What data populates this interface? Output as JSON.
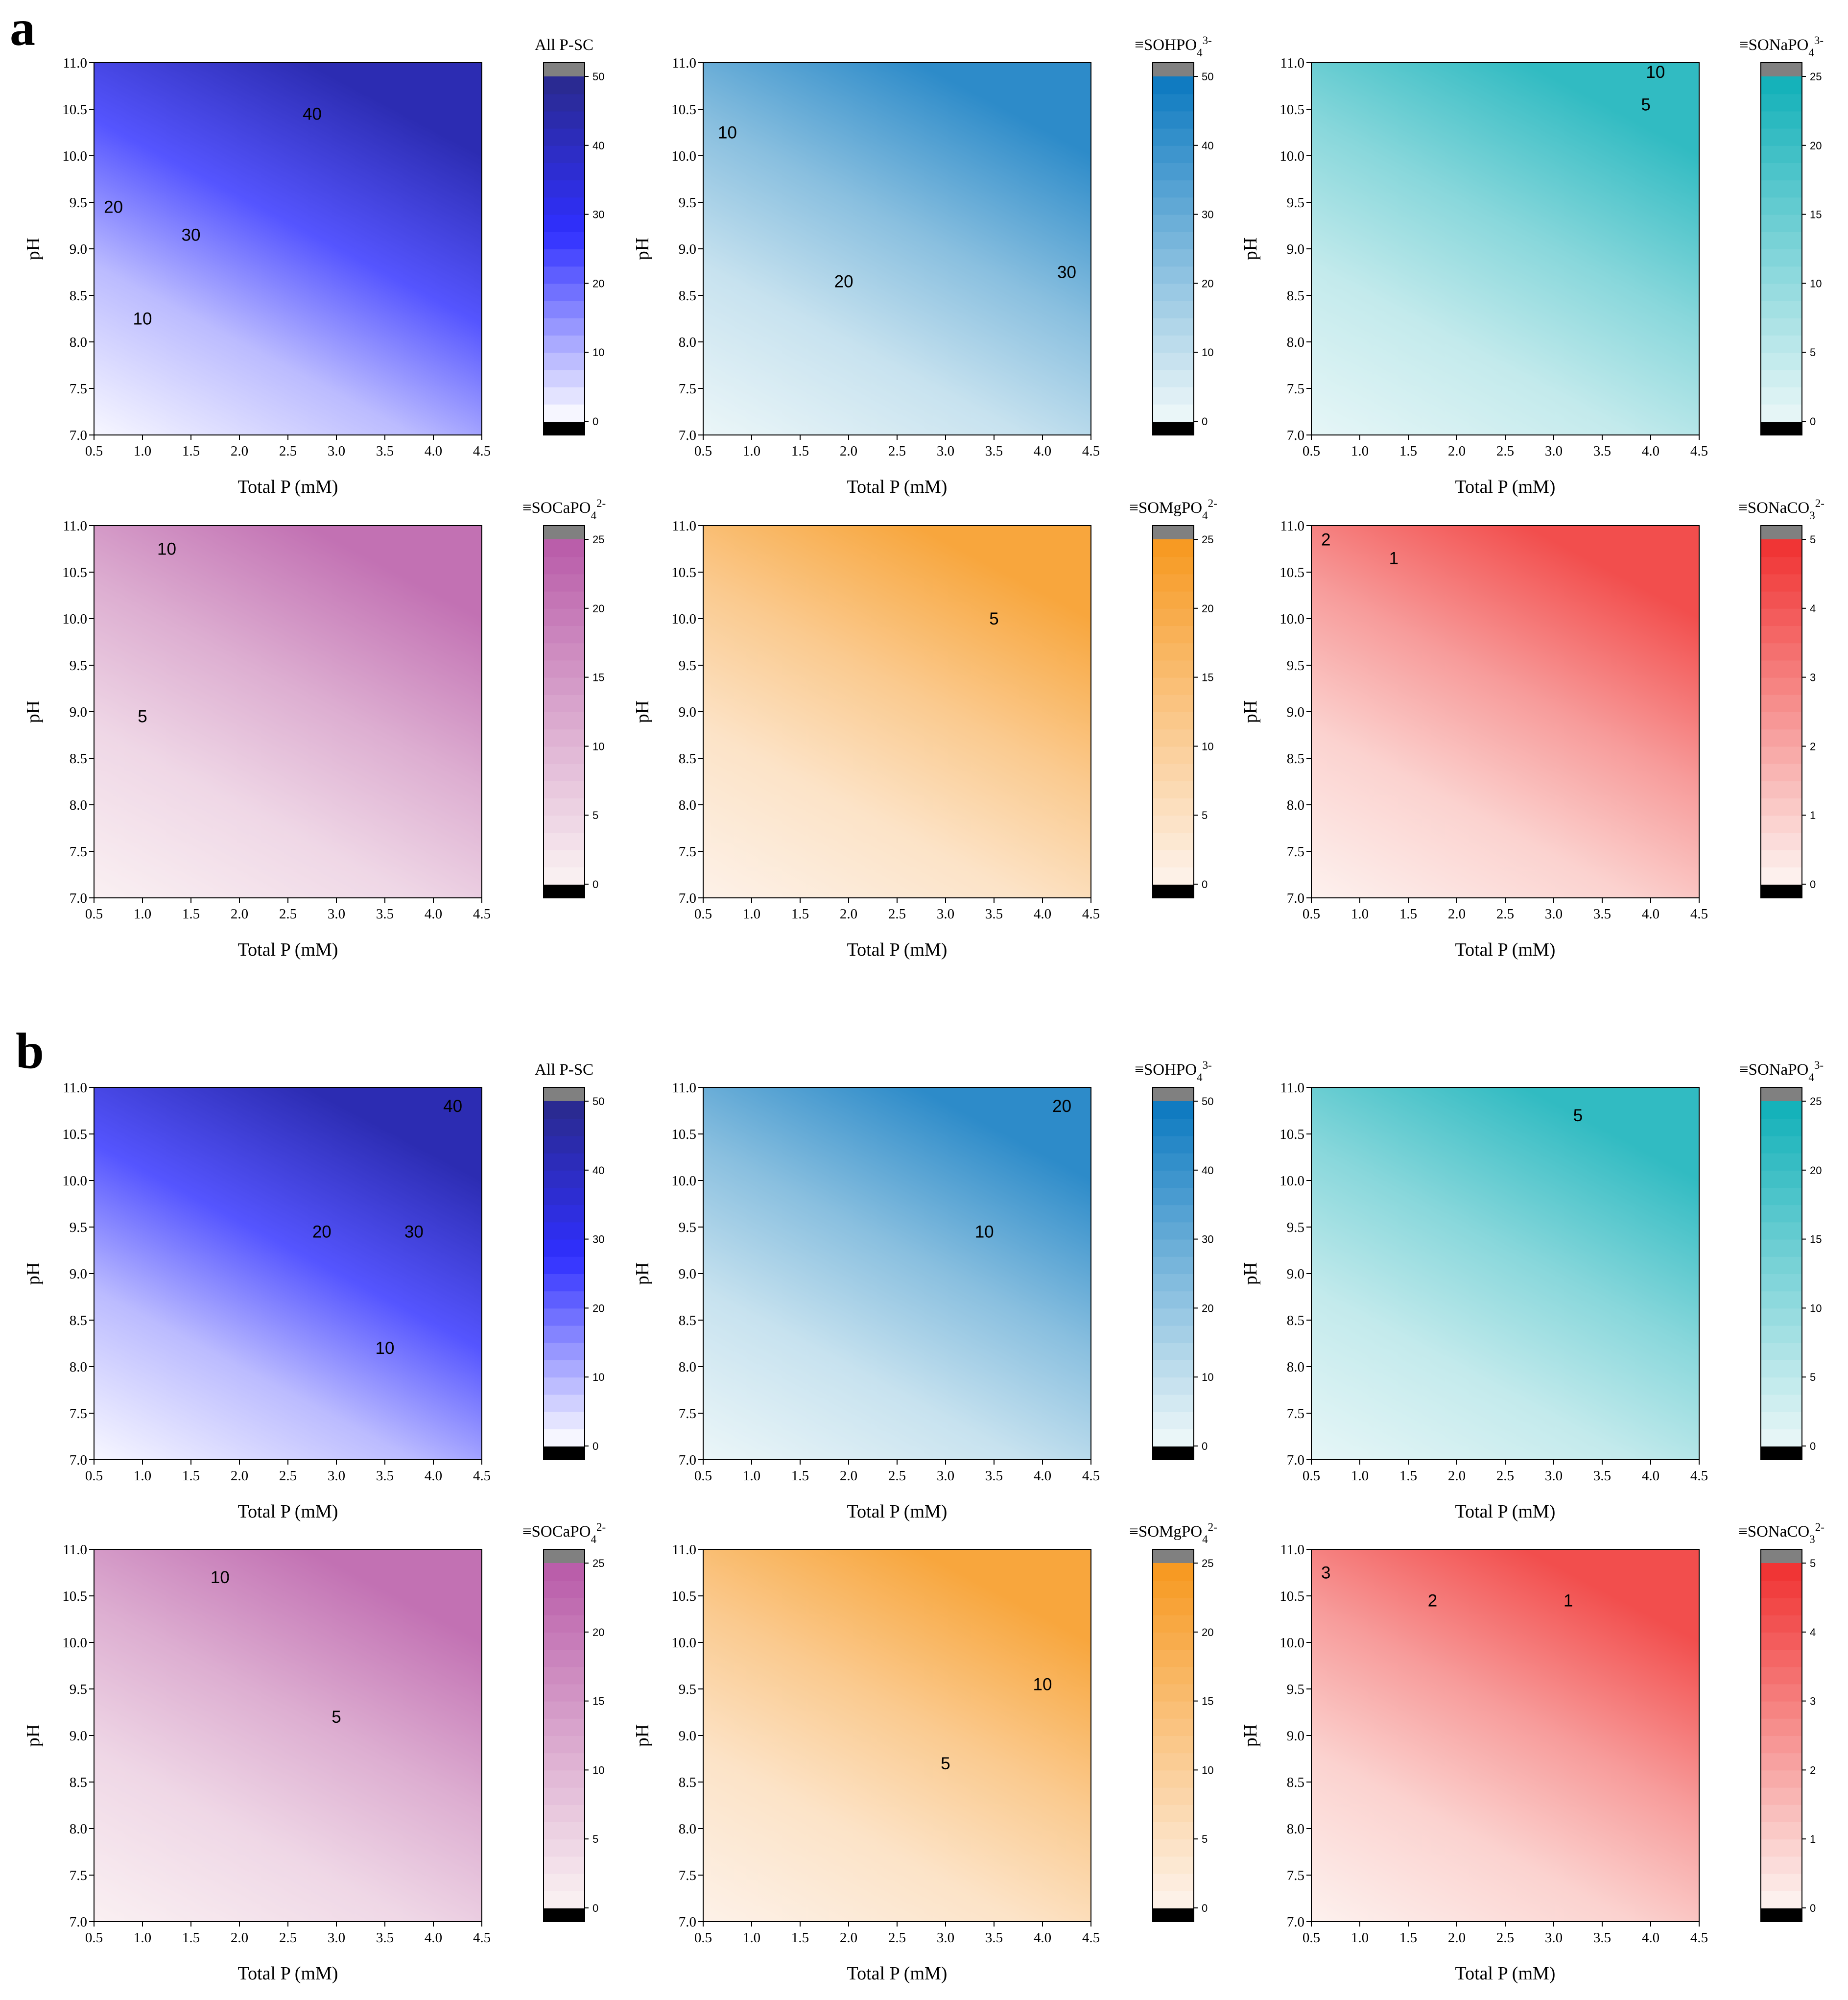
{
  "section_labels": {
    "a": "a",
    "b": "b"
  },
  "chart_data": [
    {
      "section": "a",
      "type": "heatmap",
      "title": "All P-SC",
      "colorscale": {
        "low": "#ffffff",
        "high": "#2a2a8c",
        "mid": "#2f2fff"
      },
      "cmax": 50,
      "colorbar_ticks": [
        0,
        10,
        20,
        30,
        40,
        50
      ],
      "xlabel": "Total P (mM)",
      "ylabel": "pH",
      "xlim": [
        0.5,
        4.5
      ],
      "ylim": [
        7.0,
        11.0
      ],
      "x_ticks": [
        0.5,
        1.0,
        1.5,
        2.0,
        2.5,
        3.0,
        3.5,
        4.0,
        4.5
      ],
      "y_ticks": [
        7.0,
        7.5,
        8.0,
        8.5,
        9.0,
        9.5,
        10.0,
        10.5,
        11.0
      ],
      "contour_levels": [
        10,
        20,
        30,
        40
      ],
      "contour_labels": [
        {
          "text": "40",
          "x": 2.75,
          "y": 10.45
        },
        {
          "text": "20",
          "x": 0.7,
          "y": 9.45
        },
        {
          "text": "30",
          "x": 1.5,
          "y": 9.15
        },
        {
          "text": "10",
          "x": 1.0,
          "y": 8.25
        }
      ]
    },
    {
      "section": "a",
      "type": "heatmap",
      "title": "≡SOHPO",
      "title_sub": "4",
      "title_sup": "3-",
      "colorscale": {
        "low": "#f0f9f9",
        "high": "#0a78c0"
      },
      "cmax": 50,
      "colorbar_ticks": [
        0,
        10,
        20,
        30,
        40,
        50
      ],
      "xlabel": "Total P (mM)",
      "ylabel": "pH",
      "xlim": [
        0.5,
        4.5
      ],
      "ylim": [
        7.0,
        11.0
      ],
      "x_ticks": [
        0.5,
        1.0,
        1.5,
        2.0,
        2.5,
        3.0,
        3.5,
        4.0,
        4.5
      ],
      "y_ticks": [
        7.0,
        7.5,
        8.0,
        8.5,
        9.0,
        9.5,
        10.0,
        10.5,
        11.0
      ],
      "contour_levels": [
        10,
        20,
        30
      ],
      "contour_labels": [
        {
          "text": "10",
          "x": 0.75,
          "y": 10.25
        },
        {
          "text": "20",
          "x": 1.95,
          "y": 8.65
        },
        {
          "text": "30",
          "x": 4.25,
          "y": 8.75
        }
      ]
    },
    {
      "section": "a",
      "type": "heatmap",
      "title": "≡SONaPO",
      "title_sub": "4",
      "title_sup": "3-",
      "colorscale": {
        "low": "#eaf7f8",
        "high": "#10b0b8"
      },
      "cmax": 25,
      "colorbar_ticks": [
        0,
        5,
        10,
        15,
        20,
        25
      ],
      "xlabel": "Total P (mM)",
      "ylabel": "pH",
      "xlim": [
        0.5,
        4.5
      ],
      "ylim": [
        7.0,
        11.0
      ],
      "x_ticks": [
        0.5,
        1.0,
        1.5,
        2.0,
        2.5,
        3.0,
        3.5,
        4.0,
        4.5
      ],
      "y_ticks": [
        7.0,
        7.5,
        8.0,
        8.5,
        9.0,
        9.5,
        10.0,
        10.5,
        11.0
      ],
      "contour_levels": [
        5,
        10
      ],
      "contour_labels": [
        {
          "text": "10",
          "x": 4.05,
          "y": 10.9
        },
        {
          "text": "5",
          "x": 3.95,
          "y": 10.55
        }
      ]
    },
    {
      "section": "a",
      "type": "heatmap",
      "title": "≡SOCaPO",
      "title_sub": "4",
      "title_sup": "2-",
      "colorscale": {
        "low": "#fbf3f3",
        "high": "#b85aa8"
      },
      "cmax": 25,
      "colorbar_ticks": [
        0,
        5,
        10,
        15,
        20,
        25
      ],
      "xlabel": "Total P (mM)",
      "ylabel": "pH",
      "xlim": [
        0.5,
        4.5
      ],
      "ylim": [
        7.0,
        11.0
      ],
      "x_ticks": [
        0.5,
        1.0,
        1.5,
        2.0,
        2.5,
        3.0,
        3.5,
        4.0,
        4.5
      ],
      "y_ticks": [
        7.0,
        7.5,
        8.0,
        8.5,
        9.0,
        9.5,
        10.0,
        10.5,
        11.0
      ],
      "contour_levels": [
        5,
        10
      ],
      "contour_labels": [
        {
          "text": "10",
          "x": 1.25,
          "y": 10.75
        },
        {
          "text": "5",
          "x": 1.0,
          "y": 8.95
        }
      ]
    },
    {
      "section": "a",
      "type": "heatmap",
      "title": "≡SOMgPO",
      "title_sub": "4",
      "title_sup": "2-",
      "colorscale": {
        "low": "#fdf3ec",
        "high": "#f7981e"
      },
      "cmax": 25,
      "colorbar_ticks": [
        0,
        5,
        10,
        15,
        20,
        25
      ],
      "xlabel": "Total P (mM)",
      "ylabel": "pH",
      "xlim": [
        0.5,
        4.5
      ],
      "ylim": [
        7.0,
        11.0
      ],
      "x_ticks": [
        0.5,
        1.0,
        1.5,
        2.0,
        2.5,
        3.0,
        3.5,
        4.0,
        4.5
      ],
      "y_ticks": [
        7.0,
        7.5,
        8.0,
        8.5,
        9.0,
        9.5,
        10.0,
        10.5,
        11.0
      ],
      "contour_levels": [
        5
      ],
      "contour_labels": [
        {
          "text": "5",
          "x": 3.5,
          "y": 10.0
        }
      ]
    },
    {
      "section": "a",
      "type": "heatmap",
      "title": "≡SONaCO",
      "title_sub": "3",
      "title_sup": "2-",
      "colorscale": {
        "low": "#fdf5f2",
        "high": "#f03030"
      },
      "cmax": 5,
      "colorbar_ticks": [
        0,
        1,
        2,
        3,
        4,
        5
      ],
      "xlabel": "Total P (mM)",
      "ylabel": "pH",
      "xlim": [
        0.5,
        4.5
      ],
      "ylim": [
        7.0,
        11.0
      ],
      "x_ticks": [
        0.5,
        1.0,
        1.5,
        2.0,
        2.5,
        3.0,
        3.5,
        4.0,
        4.5
      ],
      "y_ticks": [
        7.0,
        7.5,
        8.0,
        8.5,
        9.0,
        9.5,
        10.0,
        10.5,
        11.0
      ],
      "contour_levels": [
        1,
        2
      ],
      "contour_labels": [
        {
          "text": "2",
          "x": 0.65,
          "y": 10.85
        },
        {
          "text": "1",
          "x": 1.35,
          "y": 10.65
        }
      ]
    },
    {
      "section": "b",
      "type": "heatmap",
      "title": "All P-SC",
      "colorscale": {
        "low": "#ffffff",
        "high": "#2a2a8c",
        "mid": "#2f2fff"
      },
      "cmax": 50,
      "colorbar_ticks": [
        0,
        10,
        20,
        30,
        40,
        50
      ],
      "xlabel": "Total P (mM)",
      "ylabel": "pH",
      "xlim": [
        0.5,
        4.5
      ],
      "ylim": [
        7.0,
        11.0
      ],
      "x_ticks": [
        0.5,
        1.0,
        1.5,
        2.0,
        2.5,
        3.0,
        3.5,
        4.0,
        4.5
      ],
      "y_ticks": [
        7.0,
        7.5,
        8.0,
        8.5,
        9.0,
        9.5,
        10.0,
        10.5,
        11.0
      ],
      "contour_levels": [
        10,
        20,
        30,
        40
      ],
      "contour_labels": [
        {
          "text": "40",
          "x": 4.2,
          "y": 10.8
        },
        {
          "text": "20",
          "x": 2.85,
          "y": 9.45
        },
        {
          "text": "30",
          "x": 3.8,
          "y": 9.45
        },
        {
          "text": "10",
          "x": 3.5,
          "y": 8.2
        }
      ]
    },
    {
      "section": "b",
      "type": "heatmap",
      "title": "≡SOHPO",
      "title_sub": "4",
      "title_sup": "3-",
      "colorscale": {
        "low": "#f0f9f9",
        "high": "#0a78c0"
      },
      "cmax": 50,
      "colorbar_ticks": [
        0,
        10,
        20,
        30,
        40,
        50
      ],
      "xlabel": "Total P (mM)",
      "ylabel": "pH",
      "xlim": [
        0.5,
        4.5
      ],
      "ylim": [
        7.0,
        11.0
      ],
      "x_ticks": [
        0.5,
        1.0,
        1.5,
        2.0,
        2.5,
        3.0,
        3.5,
        4.0,
        4.5
      ],
      "y_ticks": [
        7.0,
        7.5,
        8.0,
        8.5,
        9.0,
        9.5,
        10.0,
        10.5,
        11.0
      ],
      "contour_levels": [
        10,
        20
      ],
      "contour_labels": [
        {
          "text": "20",
          "x": 4.2,
          "y": 10.8
        },
        {
          "text": "10",
          "x": 3.4,
          "y": 9.45
        }
      ]
    },
    {
      "section": "b",
      "type": "heatmap",
      "title": "≡SONaPO",
      "title_sub": "4",
      "title_sup": "3-",
      "colorscale": {
        "low": "#eaf7f8",
        "high": "#10b0b8"
      },
      "cmax": 25,
      "colorbar_ticks": [
        0,
        5,
        10,
        15,
        20,
        25
      ],
      "xlabel": "Total P (mM)",
      "ylabel": "pH",
      "xlim": [
        0.5,
        4.5
      ],
      "ylim": [
        7.0,
        11.0
      ],
      "x_ticks": [
        0.5,
        1.0,
        1.5,
        2.0,
        2.5,
        3.0,
        3.5,
        4.0,
        4.5
      ],
      "y_ticks": [
        7.0,
        7.5,
        8.0,
        8.5,
        9.0,
        9.5,
        10.0,
        10.5,
        11.0
      ],
      "contour_levels": [
        5
      ],
      "contour_labels": [
        {
          "text": "5",
          "x": 3.25,
          "y": 10.7
        }
      ]
    },
    {
      "section": "b",
      "type": "heatmap",
      "title": "≡SOCaPO",
      "title_sub": "4",
      "title_sup": "2-",
      "colorscale": {
        "low": "#fbf3f3",
        "high": "#b85aa8"
      },
      "cmax": 25,
      "colorbar_ticks": [
        0,
        5,
        10,
        15,
        20,
        25
      ],
      "xlabel": "Total P (mM)",
      "ylabel": "pH",
      "xlim": [
        0.5,
        4.5
      ],
      "ylim": [
        7.0,
        11.0
      ],
      "x_ticks": [
        0.5,
        1.0,
        1.5,
        2.0,
        2.5,
        3.0,
        3.5,
        4.0,
        4.5
      ],
      "y_ticks": [
        7.0,
        7.5,
        8.0,
        8.5,
        9.0,
        9.5,
        10.0,
        10.5,
        11.0
      ],
      "contour_levels": [
        5,
        10
      ],
      "contour_labels": [
        {
          "text": "10",
          "x": 1.8,
          "y": 10.7
        },
        {
          "text": "5",
          "x": 3.0,
          "y": 9.2
        }
      ]
    },
    {
      "section": "b",
      "type": "heatmap",
      "title": "≡SOMgPO",
      "title_sub": "4",
      "title_sup": "2-",
      "colorscale": {
        "low": "#fdf3ec",
        "high": "#f7981e"
      },
      "cmax": 25,
      "colorbar_ticks": [
        0,
        5,
        10,
        15,
        20,
        25
      ],
      "xlabel": "Total P (mM)",
      "ylabel": "pH",
      "xlim": [
        0.5,
        4.5
      ],
      "ylim": [
        7.0,
        11.0
      ],
      "x_ticks": [
        0.5,
        1.0,
        1.5,
        2.0,
        2.5,
        3.0,
        3.5,
        4.0,
        4.5
      ],
      "y_ticks": [
        7.0,
        7.5,
        8.0,
        8.5,
        9.0,
        9.5,
        10.0,
        10.5,
        11.0
      ],
      "contour_levels": [
        5,
        10
      ],
      "contour_labels": [
        {
          "text": "10",
          "x": 4.0,
          "y": 9.55
        },
        {
          "text": "5",
          "x": 3.0,
          "y": 8.7
        }
      ]
    },
    {
      "section": "b",
      "type": "heatmap",
      "title": "≡SONaCO",
      "title_sub": "3",
      "title_sup": "2-",
      "colorscale": {
        "low": "#fdf5f2",
        "high": "#f03030"
      },
      "cmax": 5,
      "colorbar_ticks": [
        0,
        1,
        2,
        3,
        4,
        5
      ],
      "xlabel": "Total P (mM)",
      "ylabel": "pH",
      "xlim": [
        0.5,
        4.5
      ],
      "ylim": [
        7.0,
        11.0
      ],
      "x_ticks": [
        0.5,
        1.0,
        1.5,
        2.0,
        2.5,
        3.0,
        3.5,
        4.0,
        4.5
      ],
      "y_ticks": [
        7.0,
        7.5,
        8.0,
        8.5,
        9.0,
        9.5,
        10.0,
        10.5,
        11.0
      ],
      "contour_levels": [
        1,
        2,
        3
      ],
      "contour_labels": [
        {
          "text": "3",
          "x": 0.65,
          "y": 10.75
        },
        {
          "text": "2",
          "x": 1.75,
          "y": 10.45
        },
        {
          "text": "1",
          "x": 3.15,
          "y": 10.45
        }
      ]
    }
  ]
}
